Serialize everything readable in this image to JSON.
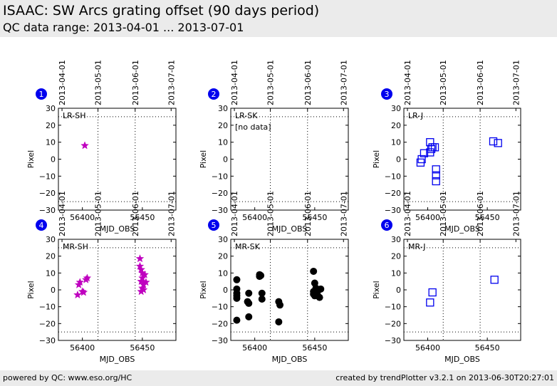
{
  "header": {
    "title": "ISAAC: SW Arcs grating offset (90 days period)",
    "subtitle": "QC data range: 2013-04-01 ... 2013-07-01"
  },
  "footer": {
    "left": "powered by QC: www.eso.org/HC",
    "right": "created by trendPlotter v3.2.1 on 2013-06-30T20:27:01"
  },
  "colors": {
    "badge": "#0000ee",
    "magenta": "#bf00bf",
    "black": "#000000",
    "blue": "#0000ee",
    "grid": "#000000"
  },
  "chart_data": [
    {
      "type": "scatter",
      "number": "1",
      "label": "LR-SH",
      "note": "",
      "xlabel": "MJD_OBS",
      "ylabel": "Pixel",
      "xlim": [
        56380,
        56478
      ],
      "ylim": [
        -30,
        30
      ],
      "xticks": [
        56400,
        56450
      ],
      "yticks": [
        -30,
        -20,
        -10,
        0,
        10,
        20,
        30
      ],
      "top_ticks": [
        {
          "x": 56383,
          "label": "2013-04-01"
        },
        {
          "x": 56413,
          "label": "2013-05-01"
        },
        {
          "x": 56444,
          "label": "2013-06-01"
        },
        {
          "x": 56474,
          "label": "2013-07-01"
        }
      ],
      "hlines": [
        25,
        -25
      ],
      "vlines": [
        56413,
        56444
      ],
      "marker": "star",
      "color": "#bf00bf",
      "points": [
        [
          56402,
          8
        ]
      ]
    },
    {
      "type": "scatter",
      "number": "2",
      "label": "LR-SK",
      "note": "[no data]",
      "xlabel": "MJD_OBS",
      "ylabel": "Pixel",
      "xlim": [
        56380,
        56478
      ],
      "ylim": [
        -30,
        30
      ],
      "xticks": [
        56400,
        56450
      ],
      "yticks": [
        -30,
        -20,
        -10,
        0,
        10,
        20,
        30
      ],
      "top_ticks": [
        {
          "x": 56383,
          "label": "2013-04-01"
        },
        {
          "x": 56413,
          "label": "2013-05-01"
        },
        {
          "x": 56444,
          "label": "2013-06-01"
        },
        {
          "x": 56474,
          "label": "2013-07-01"
        }
      ],
      "hlines": [
        25,
        -25
      ],
      "vlines": [
        56413,
        56444
      ],
      "marker": "circle",
      "color": "#000000",
      "points": []
    },
    {
      "type": "scatter",
      "number": "3",
      "label": "LR-J",
      "note": "",
      "xlabel": "MJD_OBS",
      "ylabel": "Pixel",
      "xlim": [
        56380,
        56478
      ],
      "ylim": [
        -30,
        30
      ],
      "xticks": [
        56400,
        56450
      ],
      "yticks": [
        -30,
        -20,
        -10,
        0,
        10,
        20,
        30
      ],
      "top_ticks": [
        {
          "x": 56383,
          "label": "2013-04-01"
        },
        {
          "x": 56413,
          "label": "2013-05-01"
        },
        {
          "x": 56444,
          "label": "2013-06-01"
        },
        {
          "x": 56474,
          "label": "2013-07-01"
        }
      ],
      "hlines": [
        25,
        -25
      ],
      "vlines": [
        56413,
        56444
      ],
      "marker": "square",
      "color": "#0000ee",
      "points": [
        [
          56394,
          -2
        ],
        [
          56395,
          0
        ],
        [
          56397,
          3.5
        ],
        [
          56402,
          10
        ],
        [
          56402,
          4
        ],
        [
          56403,
          6
        ],
        [
          56404,
          7
        ],
        [
          56406,
          7
        ],
        [
          56407,
          -6
        ],
        [
          56407,
          -9.5
        ],
        [
          56407,
          -13
        ],
        [
          56455,
          10.5
        ],
        [
          56459,
          9.5
        ]
      ]
    },
    {
      "type": "scatter",
      "number": "4",
      "label": "MR-SH",
      "note": "",
      "xlabel": "MJD_OBS",
      "ylabel": "Pixel",
      "xlim": [
        56380,
        56478
      ],
      "ylim": [
        -30,
        30
      ],
      "xticks": [
        56400,
        56450
      ],
      "yticks": [
        -30,
        -20,
        -10,
        0,
        10,
        20,
        30
      ],
      "top_ticks": [
        {
          "x": 56383,
          "label": "2013-04-01"
        },
        {
          "x": 56413,
          "label": "2013-05-01"
        },
        {
          "x": 56444,
          "label": "2013-06-01"
        },
        {
          "x": 56474,
          "label": "2013-07-01"
        }
      ],
      "hlines": [
        25,
        -25
      ],
      "vlines": [
        56413,
        56444
      ],
      "marker": "star",
      "color": "#bf00bf",
      "points": [
        [
          56396,
          -3
        ],
        [
          56397,
          3
        ],
        [
          56398,
          4.5
        ],
        [
          56400,
          -1
        ],
        [
          56401,
          -1.5
        ],
        [
          56403,
          6
        ],
        [
          56404,
          7
        ],
        [
          56448,
          18.5
        ],
        [
          56448,
          14
        ],
        [
          56449,
          12
        ],
        [
          56450,
          10
        ],
        [
          56449,
          5
        ],
        [
          56450,
          1
        ],
        [
          56449,
          -1
        ],
        [
          56451,
          0
        ],
        [
          56451,
          3
        ],
        [
          56452,
          9
        ],
        [
          56453,
          4.5
        ],
        [
          56450,
          7
        ]
      ]
    },
    {
      "type": "scatter",
      "number": "5",
      "label": "MR-SK",
      "note": "",
      "xlabel": "MJD_OBS",
      "ylabel": "Pixel",
      "xlim": [
        56380,
        56478
      ],
      "ylim": [
        -30,
        30
      ],
      "xticks": [
        56400,
        56450
      ],
      "yticks": [
        -30,
        -20,
        -10,
        0,
        10,
        20,
        30
      ],
      "top_ticks": [
        {
          "x": 56383,
          "label": "2013-04-01"
        },
        {
          "x": 56413,
          "label": "2013-05-01"
        },
        {
          "x": 56444,
          "label": "2013-06-01"
        },
        {
          "x": 56474,
          "label": "2013-07-01"
        }
      ],
      "hlines": [
        25,
        -25
      ],
      "vlines": [
        56413,
        56444
      ],
      "marker": "circle",
      "color": "#000000",
      "points": [
        [
          56385,
          6
        ],
        [
          56385,
          0.5
        ],
        [
          56385,
          -2
        ],
        [
          56385,
          -3.5
        ],
        [
          56385,
          -5
        ],
        [
          56385,
          -18
        ],
        [
          56394,
          -7
        ],
        [
          56395,
          -8
        ],
        [
          56395,
          -2
        ],
        [
          56395,
          -16
        ],
        [
          56404,
          8
        ],
        [
          56404,
          9
        ],
        [
          56405,
          8.5
        ],
        [
          56406,
          -2
        ],
        [
          56406,
          -5.5
        ],
        [
          56420,
          -7
        ],
        [
          56420,
          -19
        ],
        [
          56421,
          -9
        ],
        [
          56449,
          11
        ],
        [
          56449,
          -1
        ],
        [
          56449,
          -2.5
        ],
        [
          56450,
          4
        ],
        [
          56450,
          -3.5
        ],
        [
          56451,
          1
        ],
        [
          56452,
          -2
        ],
        [
          56453,
          0
        ],
        [
          56454,
          -4.5
        ],
        [
          56455,
          0.5
        ]
      ]
    },
    {
      "type": "scatter",
      "number": "6",
      "label": "MR-J",
      "note": "",
      "xlabel": "MJD_OBS",
      "ylabel": "Pixel",
      "xlim": [
        56380,
        56478
      ],
      "ylim": [
        -30,
        30
      ],
      "xticks": [
        56400,
        56450
      ],
      "yticks": [
        -30,
        -20,
        -10,
        0,
        10,
        20,
        30
      ],
      "top_ticks": [
        {
          "x": 56383,
          "label": "2013-04-01"
        },
        {
          "x": 56413,
          "label": "2013-05-01"
        },
        {
          "x": 56444,
          "label": "2013-06-01"
        },
        {
          "x": 56474,
          "label": "2013-07-01"
        }
      ],
      "hlines": [
        25,
        -25
      ],
      "vlines": [
        56413,
        56444
      ],
      "marker": "square",
      "color": "#0000ee",
      "points": [
        [
          56402,
          -7.5
        ],
        [
          56404,
          -1.5
        ],
        [
          56456,
          6
        ]
      ]
    }
  ]
}
